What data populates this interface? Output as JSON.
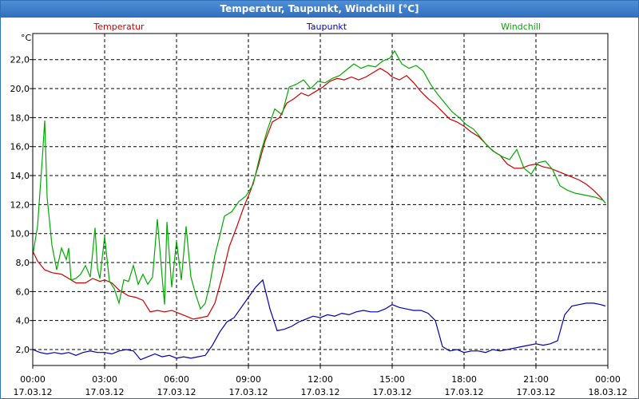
{
  "window": {
    "title": "Temperatur, Taupunkt, Windchill [°C]"
  },
  "chart_data": {
    "type": "line",
    "ylabel": "°C",
    "ylim": [
      0.9,
      23.8
    ],
    "xlim": [
      0,
      24
    ],
    "grid": true,
    "y_ticks": [
      "2,0",
      "4,0",
      "6,0",
      "8,0",
      "10,0",
      "12,0",
      "14,0",
      "16,0",
      "18,0",
      "20,0",
      "22,0"
    ],
    "x_ticks": [
      {
        "time": "00:00",
        "date": "17.03.12"
      },
      {
        "time": "03:00",
        "date": "17.03.12"
      },
      {
        "time": "06:00",
        "date": "17.03.12"
      },
      {
        "time": "09:00",
        "date": "17.03.12"
      },
      {
        "time": "12:00",
        "date": "17.03.12"
      },
      {
        "time": "15:00",
        "date": "17.03.12"
      },
      {
        "time": "18:00",
        "date": "17.03.12"
      },
      {
        "time": "21:00",
        "date": "17.03.12"
      },
      {
        "time": "00:00",
        "date": "18.03.12"
      }
    ],
    "series": [
      {
        "name": "Temperatur",
        "color": "#cc0000",
        "x": [
          0,
          0.2,
          0.5,
          0.8,
          1.2,
          1.5,
          1.8,
          2.2,
          2.5,
          2.8,
          3.0,
          3.3,
          3.6,
          4.0,
          4.3,
          4.6,
          4.9,
          5.2,
          5.5,
          5.8,
          6.1,
          6.4,
          6.7,
          7.0,
          7.3,
          7.6,
          7.9,
          8.2,
          8.5,
          8.8,
          9.1,
          9.4,
          9.7,
          10.0,
          10.3,
          10.6,
          10.9,
          11.2,
          11.5,
          11.8,
          12.1,
          12.4,
          12.7,
          13.0,
          13.3,
          13.6,
          13.9,
          14.2,
          14.5,
          14.8,
          15.0,
          15.3,
          15.6,
          15.9,
          16.2,
          16.5,
          16.8,
          17.1,
          17.4,
          17.7,
          18.0,
          18.3,
          18.6,
          18.9,
          19.2,
          19.5,
          19.8,
          20.1,
          20.4,
          20.7,
          21.0,
          21.3,
          21.6,
          21.9,
          22.2,
          22.5,
          22.8,
          23.1,
          23.4,
          23.7,
          23.9
        ],
        "values": [
          8.8,
          8.1,
          7.5,
          7.3,
          7.2,
          6.9,
          6.6,
          6.6,
          6.9,
          6.7,
          6.8,
          6.6,
          6.1,
          5.7,
          5.6,
          5.4,
          4.6,
          4.7,
          4.6,
          4.7,
          4.5,
          4.3,
          4.1,
          4.2,
          4.3,
          5.2,
          7.0,
          9.1,
          10.4,
          11.8,
          13.0,
          14.6,
          16.4,
          17.7,
          18.0,
          19.0,
          19.3,
          19.7,
          19.5,
          19.8,
          20.1,
          20.5,
          20.7,
          20.6,
          20.8,
          20.6,
          20.8,
          21.1,
          21.4,
          21.1,
          20.8,
          20.6,
          20.9,
          20.4,
          19.8,
          19.3,
          18.9,
          18.4,
          17.9,
          17.7,
          17.4,
          17.0,
          16.7,
          16.2,
          15.7,
          15.4,
          14.8,
          14.5,
          14.5,
          14.7,
          14.8,
          14.6,
          14.5,
          14.3,
          14.1,
          13.9,
          13.7,
          13.4,
          13.0,
          12.5,
          12.1
        ]
      },
      {
        "name": "Taupunkt",
        "color": "#0000b0",
        "x": [
          0,
          0.3,
          0.6,
          0.9,
          1.2,
          1.5,
          1.8,
          2.1,
          2.4,
          2.7,
          3.0,
          3.3,
          3.6,
          3.9,
          4.2,
          4.5,
          4.8,
          5.1,
          5.4,
          5.7,
          6.0,
          6.3,
          6.6,
          6.9,
          7.2,
          7.5,
          7.8,
          8.1,
          8.4,
          8.7,
          9.0,
          9.3,
          9.6,
          9.9,
          10.2,
          10.5,
          10.8,
          11.1,
          11.4,
          11.7,
          12.0,
          12.3,
          12.6,
          12.9,
          13.2,
          13.5,
          13.8,
          14.1,
          14.4,
          14.7,
          15.0,
          15.3,
          15.6,
          15.9,
          16.2,
          16.5,
          16.8,
          17.1,
          17.4,
          17.7,
          18.0,
          18.3,
          18.6,
          18.9,
          19.2,
          19.5,
          19.8,
          20.1,
          20.4,
          20.7,
          21.0,
          21.3,
          21.6,
          21.9,
          22.2,
          22.5,
          22.8,
          23.1,
          23.4,
          23.7,
          23.9
        ],
        "values": [
          2.0,
          1.8,
          1.7,
          1.8,
          1.7,
          1.8,
          1.6,
          1.8,
          1.9,
          1.8,
          1.8,
          1.7,
          1.9,
          2.0,
          1.9,
          1.3,
          1.5,
          1.7,
          1.5,
          1.6,
          1.4,
          1.5,
          1.4,
          1.5,
          1.6,
          2.3,
          3.2,
          3.9,
          4.2,
          4.9,
          5.6,
          6.3,
          6.8,
          4.8,
          3.3,
          3.4,
          3.6,
          3.9,
          4.1,
          4.3,
          4.2,
          4.4,
          4.3,
          4.5,
          4.4,
          4.6,
          4.7,
          4.6,
          4.6,
          4.8,
          5.1,
          4.9,
          4.8,
          4.7,
          4.7,
          4.5,
          4.0,
          2.2,
          1.9,
          2.0,
          1.8,
          1.9,
          1.9,
          1.8,
          2.0,
          1.9,
          2.0,
          2.1,
          2.2,
          2.3,
          2.4,
          2.3,
          2.4,
          2.6,
          4.4,
          5.0,
          5.1,
          5.2,
          5.2,
          5.1,
          5.0
        ]
      },
      {
        "name": "Windchill",
        "color": "#00aa00",
        "x": [
          0,
          0.2,
          0.4,
          0.5,
          0.6,
          0.8,
          1.0,
          1.2,
          1.4,
          1.5,
          1.6,
          1.8,
          2.0,
          2.2,
          2.4,
          2.6,
          2.7,
          2.8,
          3.0,
          3.2,
          3.4,
          3.6,
          3.8,
          4.0,
          4.2,
          4.4,
          4.6,
          4.8,
          5.0,
          5.2,
          5.4,
          5.5,
          5.6,
          5.8,
          6.0,
          6.2,
          6.4,
          6.6,
          6.8,
          7.0,
          7.2,
          7.4,
          7.6,
          7.8,
          8.0,
          8.3,
          8.6,
          8.9,
          9.2,
          9.5,
          9.8,
          10.1,
          10.4,
          10.7,
          11.0,
          11.3,
          11.6,
          11.9,
          12.2,
          12.5,
          12.8,
          13.1,
          13.4,
          13.7,
          14.0,
          14.3,
          14.6,
          14.9,
          15.1,
          15.4,
          15.7,
          16.0,
          16.3,
          16.6,
          16.9,
          17.2,
          17.5,
          17.8,
          18.1,
          18.4,
          18.7,
          19.0,
          19.3,
          19.6,
          19.9,
          20.2,
          20.5,
          20.8,
          21.1,
          21.4,
          21.7,
          22.0,
          22.3,
          22.6,
          22.9,
          23.2,
          23.5,
          23.8,
          23.9
        ],
        "values": [
          8.5,
          10.5,
          15.2,
          17.8,
          12.5,
          9.2,
          7.5,
          9.0,
          8.2,
          9.0,
          6.8,
          6.9,
          7.2,
          7.8,
          7.0,
          10.4,
          7.6,
          6.9,
          9.8,
          6.7,
          6.2,
          5.2,
          6.8,
          6.7,
          7.8,
          6.5,
          7.2,
          6.5,
          7.0,
          11.0,
          7.0,
          5.1,
          10.8,
          6.3,
          9.5,
          6.8,
          10.5,
          7.0,
          5.8,
          4.8,
          5.2,
          6.6,
          8.5,
          9.8,
          11.2,
          11.5,
          12.2,
          12.6,
          13.4,
          15.5,
          17.2,
          18.6,
          18.2,
          20.1,
          20.3,
          20.6,
          20.0,
          20.5,
          20.4,
          20.7,
          20.9,
          21.3,
          21.7,
          21.4,
          21.6,
          21.5,
          21.9,
          22.1,
          22.6,
          21.7,
          21.4,
          21.6,
          21.2,
          20.3,
          19.6,
          19.0,
          18.4,
          18.0,
          17.5,
          17.2,
          16.6,
          16.0,
          15.6,
          15.3,
          15.1,
          15.8,
          14.5,
          14.1,
          14.9,
          15.0,
          14.4,
          13.3,
          13.0,
          12.8,
          12.7,
          12.6,
          12.5,
          12.3,
          12.1
        ]
      }
    ]
  }
}
